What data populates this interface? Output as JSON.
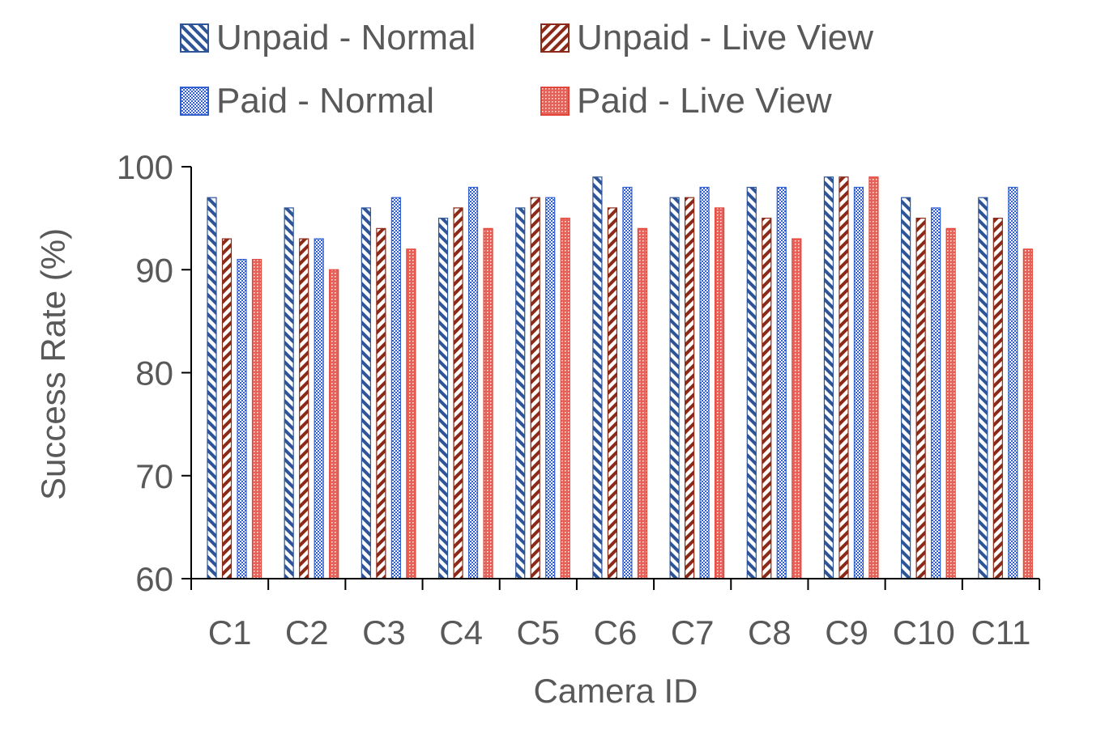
{
  "chart_data": {
    "type": "bar",
    "title": "",
    "xlabel": "Camera ID",
    "ylabel": "Success Rate (%)",
    "ylim": [
      60,
      100
    ],
    "yticks": [
      "60",
      "70",
      "80",
      "90",
      "100"
    ],
    "grid": false,
    "legend_position": "top",
    "categories": [
      "C1",
      "C2",
      "C3",
      "C4",
      "C5",
      "C6",
      "C7",
      "C8",
      "C9",
      "C10",
      "C11"
    ],
    "series": [
      {
        "name": "Unpaid - Normal",
        "color": "#2e5597",
        "pattern": "diag-down",
        "values": [
          97,
          96,
          96,
          95,
          96,
          99,
          97,
          98,
          99,
          97,
          97
        ]
      },
      {
        "name": "Unpaid - Live View",
        "color": "#8b2a18",
        "pattern": "diag-up",
        "values": [
          93,
          93,
          94,
          96,
          97,
          96,
          97,
          95,
          99,
          95,
          95
        ]
      },
      {
        "name": "Paid - Normal",
        "color": "#2f5fd0",
        "pattern": "checker",
        "values": [
          91,
          93,
          97,
          98,
          97,
          98,
          98,
          98,
          98,
          96,
          98
        ]
      },
      {
        "name": "Paid - Live View",
        "color": "#e2453a",
        "pattern": "dots",
        "values": [
          91,
          90,
          92,
          94,
          95,
          94,
          96,
          93,
          99,
          94,
          92
        ]
      }
    ]
  }
}
